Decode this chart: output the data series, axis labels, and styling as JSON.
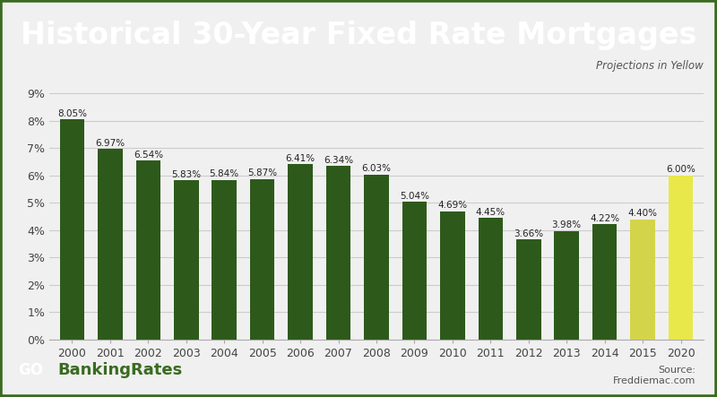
{
  "title": "Historical 30-Year Fixed Rate Mortgages",
  "title_bg_color": "#3a6b20",
  "title_text_color": "#ffffff",
  "chart_bg_color": "#f0f0f0",
  "outer_bg_color": "#f0f0f0",
  "border_outer_color": "#3a6b20",
  "categories": [
    "2000",
    "2001",
    "2002",
    "2003",
    "2004",
    "2005",
    "2006",
    "2007",
    "2008",
    "2009",
    "2010",
    "2011",
    "2012",
    "2013",
    "2014",
    "2015",
    "2020"
  ],
  "values": [
    8.05,
    6.97,
    6.54,
    5.83,
    5.84,
    5.87,
    6.41,
    6.34,
    6.03,
    5.04,
    4.69,
    4.45,
    3.66,
    3.98,
    4.22,
    4.4,
    6.0
  ],
  "bar_colors": [
    "#2d5a1b",
    "#2d5a1b",
    "#2d5a1b",
    "#2d5a1b",
    "#2d5a1b",
    "#2d5a1b",
    "#2d5a1b",
    "#2d5a1b",
    "#2d5a1b",
    "#2d5a1b",
    "#2d5a1b",
    "#2d5a1b",
    "#2d5a1b",
    "#2d5a1b",
    "#2d5a1b",
    "#d4d44a",
    "#e8e84a"
  ],
  "labels": [
    "8.05%",
    "6.97%",
    "6.54%",
    "5.83%",
    "5.84%",
    "5.87%",
    "6.41%",
    "6.34%",
    "6.03%",
    "5.04%",
    "4.69%",
    "4.45%",
    "3.66%",
    "3.98%",
    "4.22%",
    "4.40%",
    "6.00%"
  ],
  "yticks": [
    0,
    1,
    2,
    3,
    4,
    5,
    6,
    7,
    8,
    9
  ],
  "ylim": [
    0,
    9.6
  ],
  "annotation_projections": "Projections in Yellow",
  "source_text": "Source:\nFreddiemac.com",
  "logo_box_bg": "#3a6b20",
  "logo_box_text": "GO",
  "logo_rest_text": " BankingRates",
  "logo_rest_color": "#3a6b20",
  "label_fontsize": 7.5,
  "tick_fontsize": 9,
  "grid_color": "#cccccc",
  "title_fontsize": 24
}
